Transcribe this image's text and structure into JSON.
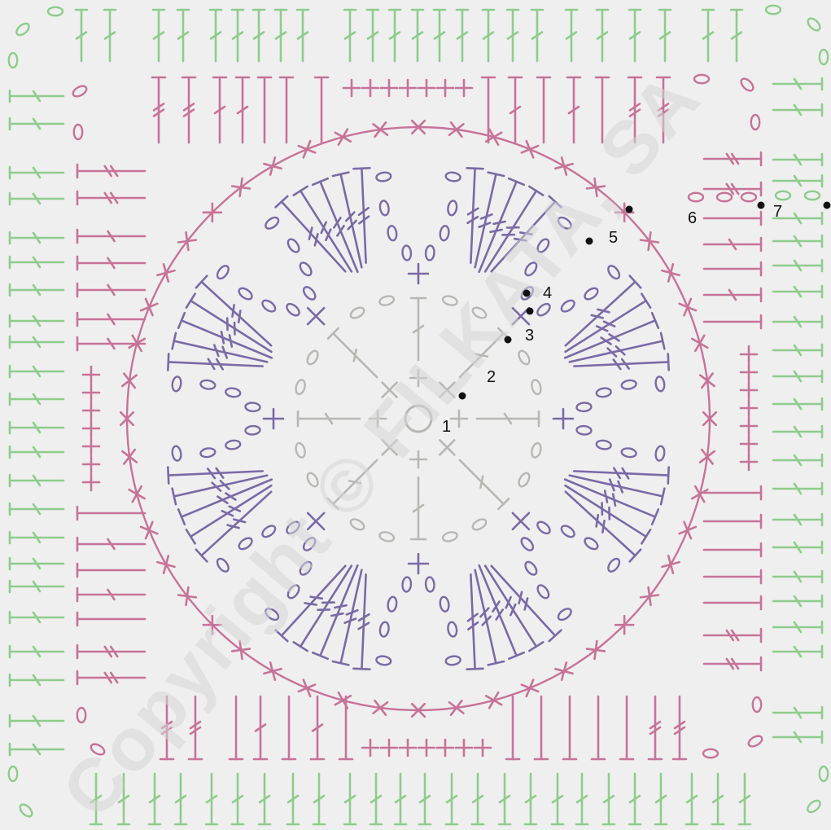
{
  "watermark": "Copyright © FILKATA, SA",
  "rounds": [
    {
      "label": "1",
      "color": "#b7b7b4"
    },
    {
      "label": "2",
      "color": "#b7b7b4"
    },
    {
      "label": "3",
      "color": "#7a6aa6"
    },
    {
      "label": "4",
      "color": "#7a6aa6"
    },
    {
      "label": "5",
      "color": "#c77398"
    },
    {
      "label": "6",
      "color": "#c77398"
    },
    {
      "label": "7",
      "color": "#8fcc8c"
    }
  ],
  "colors": {
    "background": "#efefef",
    "round_grey": "#b7b7b4",
    "round_purple": "#7a6aa6",
    "round_pink": "#c77398",
    "round_green": "#8fcc8c",
    "marker": "#111111"
  }
}
